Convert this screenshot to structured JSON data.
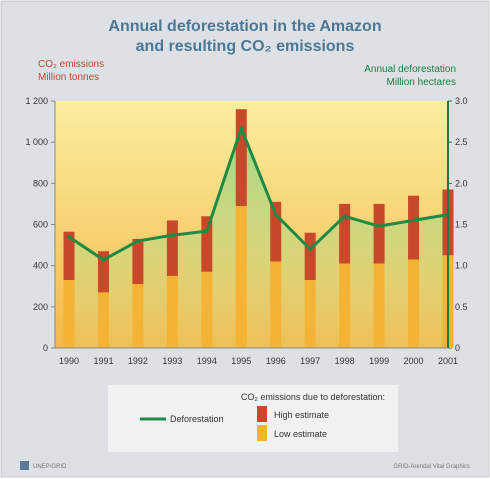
{
  "chart_data": {
    "type": "bar",
    "title_line1": "Annual deforestation in the Amazon",
    "title_line2": "and resulting CO₂ emissions",
    "ylabel_left_line1": "CO₂ emissions",
    "ylabel_left_line2": "Million tonnes",
    "ylabel_right_line1": "Annual deforestation",
    "ylabel_right_line2": "Million hectares",
    "categories": [
      "1990",
      "1991",
      "1992",
      "1993",
      "1994",
      "1995",
      "1996",
      "1997",
      "1998",
      "1999",
      "2000",
      "2001"
    ],
    "ylim_left": [
      0,
      1200
    ],
    "ylim_right": [
      0,
      3.0
    ],
    "yticks_left": [
      "0",
      "200",
      "400",
      "600",
      "800",
      "1 000",
      "1 200"
    ],
    "yticks_right": [
      "0",
      "0.5",
      "1.0",
      "1.5",
      "2.0",
      "2.5",
      "3.0"
    ],
    "yticks_left_values": [
      0,
      200,
      400,
      600,
      800,
      1000,
      1200
    ],
    "yticks_right_values": [
      0,
      0.5,
      1.0,
      1.5,
      2.0,
      2.5,
      3.0
    ],
    "series": [
      {
        "name": "Low estimate",
        "axis": "left",
        "kind": "bar",
        "color": "#f5b335",
        "values": [
          330,
          270,
          310,
          350,
          370,
          690,
          420,
          330,
          410,
          410,
          430,
          450
        ]
      },
      {
        "name": "High estimate",
        "axis": "left",
        "kind": "bar",
        "color": "#c8482a",
        "values": [
          565,
          470,
          530,
          620,
          640,
          1160,
          710,
          560,
          700,
          700,
          740,
          770
        ]
      },
      {
        "name": "Deforestation",
        "axis": "right",
        "kind": "line",
        "color": "#1f8a45",
        "values": [
          1.35,
          1.07,
          1.3,
          1.37,
          1.42,
          2.67,
          1.62,
          1.2,
          1.6,
          1.48,
          1.55,
          1.62
        ]
      }
    ],
    "legend": {
      "title": "CO₂ emissions due to deforestation:",
      "line_label": "Deforestation",
      "high_label": "High estimate",
      "low_label": "Low estimate",
      "placement": "bottom-center"
    },
    "grid": false
  },
  "colors": {
    "title": "#4c7896",
    "left_axis": "#c0462a",
    "right_axis": "#1f7a3c",
    "background": "#dde1e5",
    "plot_top": "#fbeea0",
    "plot_bottom": "#f4b84a"
  },
  "logo_text": "UNEP/GRID",
  "credit_text": "GRID-Arendal Vital Graphics"
}
